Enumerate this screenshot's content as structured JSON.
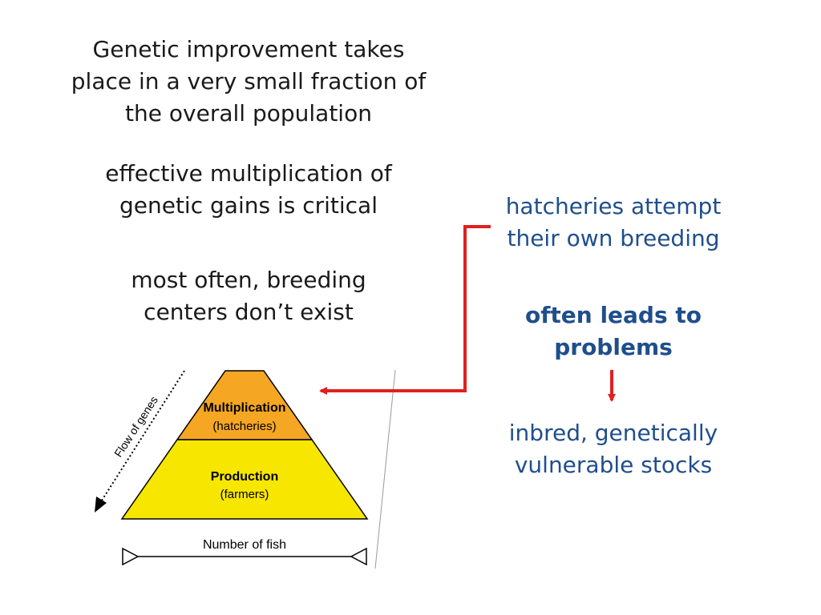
{
  "left_text": {
    "statement1_lines": [
      "Genetic improvement takes",
      "place in a very small fraction of",
      "the overall population"
    ],
    "statement2_lines": [
      "effective multiplication of",
      "genetic gains is critical"
    ],
    "statement3_lines": [
      "most often, breeding",
      "centers don’t exist"
    ]
  },
  "right_text": {
    "hatcheries_lines": [
      "hatcheries attempt",
      "their own breeding"
    ],
    "problems_lines": [
      "often leads to",
      "problems"
    ],
    "outcome_lines": [
      "inbred, genetically",
      "vulnerable stocks"
    ]
  },
  "pyramid": {
    "top_tier_title": "Multiplication",
    "top_tier_sub": "(hatcheries)",
    "bottom_tier_title": "Production",
    "bottom_tier_sub": "(farmers)",
    "side_label": "Flow of genes",
    "bottom_label": "Number of fish",
    "colors": {
      "top": "#f5a623",
      "bottom": "#f7e600",
      "outline": "#000000"
    }
  },
  "colors": {
    "arrow": "#e02020",
    "blue_text": "#1f4e8c",
    "black_text": "#1a1a1a"
  }
}
